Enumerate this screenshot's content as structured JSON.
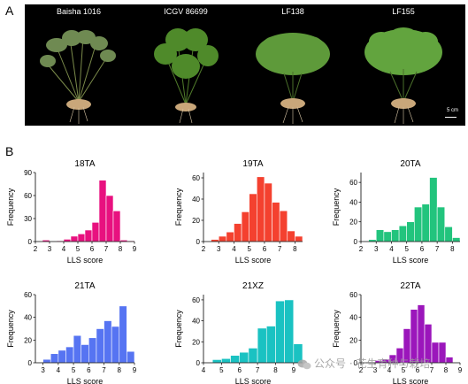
{
  "panels": {
    "a": "A",
    "b": "B"
  },
  "photo": {
    "plants": [
      "Baisha 1016",
      "ICGV 86699",
      "LF138",
      "LF155"
    ],
    "scale_label": "5 cm"
  },
  "watermark": "公众号 · 花生育种与栽培",
  "chart_data": [
    {
      "type": "bar",
      "title": "18TA",
      "xlabel": "LLS score",
      "ylabel": "Frequency",
      "color": "#e8117f",
      "bin_width": 0.5,
      "xlim": [
        2,
        9
      ],
      "ylim": [
        0,
        90
      ],
      "xticks": [
        2,
        3,
        4,
        5,
        6,
        7,
        8,
        9
      ],
      "yticks": [
        0,
        30,
        60,
        90
      ],
      "x": [
        2.0,
        2.5,
        3.0,
        3.5,
        4.0,
        4.5,
        5.0,
        5.5,
        6.0,
        6.5,
        7.0,
        7.5,
        8.0,
        8.5
      ],
      "values": [
        0,
        2,
        0,
        1,
        3,
        7,
        10,
        15,
        25,
        80,
        60,
        40,
        2,
        1
      ]
    },
    {
      "type": "bar",
      "title": "19TA",
      "xlabel": "LLS score",
      "ylabel": "Frequency",
      "color": "#f4412f",
      "bin_width": 0.5,
      "xlim": [
        2,
        8.5
      ],
      "ylim": [
        0,
        65
      ],
      "xticks": [
        2,
        3,
        4,
        5,
        6,
        7,
        8
      ],
      "yticks": [
        0,
        20,
        40,
        60
      ],
      "x": [
        2.5,
        3.0,
        3.5,
        4.0,
        4.5,
        5.0,
        5.5,
        6.0,
        6.5,
        7.0,
        7.5,
        8.0
      ],
      "values": [
        2,
        5,
        9,
        17,
        28,
        45,
        61,
        55,
        37,
        29,
        10,
        5
      ]
    },
    {
      "type": "bar",
      "title": "20TA",
      "xlabel": "LLS score",
      "ylabel": "Frequency",
      "color": "#22c47d",
      "bin_width": 0.5,
      "xlim": [
        2,
        8.5
      ],
      "ylim": [
        0,
        70
      ],
      "xticks": [
        2,
        3,
        4,
        5,
        6,
        7,
        8
      ],
      "yticks": [
        0,
        20,
        40,
        60
      ],
      "x": [
        2.5,
        3.0,
        3.5,
        4.0,
        4.5,
        5.0,
        5.5,
        6.0,
        6.5,
        7.0,
        7.5,
        8.0
      ],
      "values": [
        2,
        12,
        10,
        12,
        16,
        20,
        35,
        38,
        65,
        35,
        15,
        4
      ]
    },
    {
      "type": "bar",
      "title": "21TA",
      "xlabel": "LLS score",
      "ylabel": "Frequency",
      "color": "#5674f2",
      "bin_width": 0.5,
      "xlim": [
        2.5,
        9
      ],
      "ylim": [
        0,
        60
      ],
      "xticks": [
        3,
        4,
        5,
        6,
        7,
        8,
        9
      ],
      "yticks": [
        0,
        20,
        40,
        60
      ],
      "x": [
        3.0,
        3.5,
        4.0,
        4.5,
        5.0,
        5.5,
        6.0,
        6.5,
        7.0,
        7.5,
        8.0,
        8.5
      ],
      "values": [
        3,
        8,
        11,
        14,
        24,
        16,
        22,
        30,
        37,
        32,
        50,
        10
      ]
    },
    {
      "type": "bar",
      "title": "21XZ",
      "xlabel": "LLS score",
      "ylabel": "Frequency",
      "color": "#1ac2c2",
      "bin_width": 0.5,
      "xlim": [
        4,
        9.5
      ],
      "ylim": [
        0,
        65
      ],
      "xticks": [
        4,
        5,
        6,
        7,
        8,
        9
      ],
      "yticks": [
        0,
        20,
        40,
        60
      ],
      "x": [
        4.5,
        5.0,
        5.5,
        6.0,
        6.5,
        7.0,
        7.5,
        8.0,
        8.5,
        9.0
      ],
      "values": [
        3,
        4,
        7,
        10,
        14,
        33,
        35,
        59,
        60,
        18
      ]
    },
    {
      "type": "bar",
      "title": "22TA",
      "xlabel": "LLS score",
      "ylabel": "Frequency",
      "color": "#9b16bb",
      "bin_width": 0.5,
      "xlim": [
        2,
        9
      ],
      "ylim": [
        0,
        60
      ],
      "xticks": [
        2,
        3,
        4,
        5,
        6,
        7,
        8,
        9
      ],
      "yticks": [
        0,
        20,
        40,
        60
      ],
      "x": [
        3.0,
        3.5,
        4.0,
        4.5,
        5.0,
        5.5,
        6.0,
        6.5,
        7.0,
        7.5,
        8.0
      ],
      "values": [
        2,
        3,
        7,
        13,
        30,
        47,
        51,
        34,
        18,
        18,
        5
      ]
    }
  ]
}
